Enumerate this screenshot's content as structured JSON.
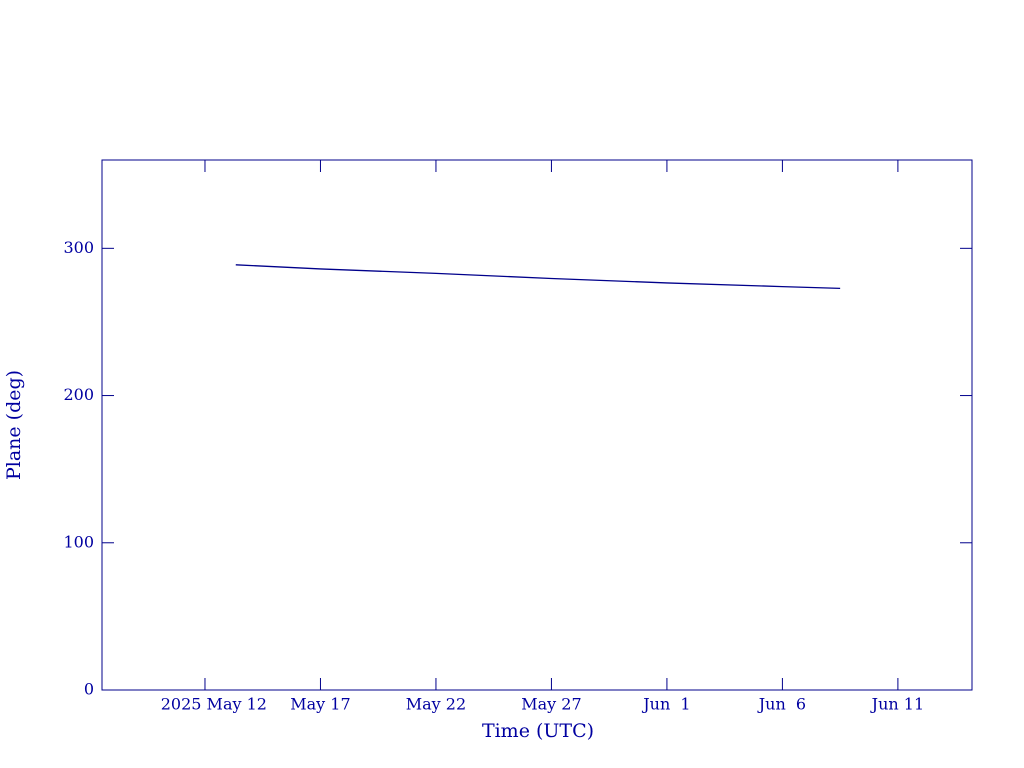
{
  "chart_data": {
    "type": "line",
    "x_label": "Time (UTC)",
    "y_label": "Plane (deg)",
    "x": [
      "2025-05-13T08:00",
      "2025-05-17T00:00",
      "2025-05-22T00:00",
      "2025-05-27T00:00",
      "2025-06-01T00:00",
      "2025-06-06T00:00",
      "2025-06-08T12:00"
    ],
    "series": [
      {
        "color": "#00008b",
        "values": [
          288.8,
          286,
          283,
          279.5,
          276.5,
          274,
          272.8
        ]
      }
    ],
    "xlim": [
      "2025-05-07T13:00",
      "2025-06-14T05:00"
    ],
    "xticks": [
      {
        "value": "2025-05-12T00:00",
        "label": "2025 May 12"
      },
      {
        "value": "2025-05-17T00:00",
        "label": "May 17"
      },
      {
        "value": "2025-05-22T00:00",
        "label": "May 22"
      },
      {
        "value": "2025-05-27T00:00",
        "label": "May 27"
      },
      {
        "value": "2025-06-01T00:00",
        "label": "Jun  1"
      },
      {
        "value": "2025-06-06T00:00",
        "label": "Jun  6"
      },
      {
        "value": "2025-06-11T00:00",
        "label": "Jun 11"
      }
    ],
    "ylim": [
      0,
      360
    ],
    "yticks": [
      0,
      100,
      200,
      300
    ]
  }
}
